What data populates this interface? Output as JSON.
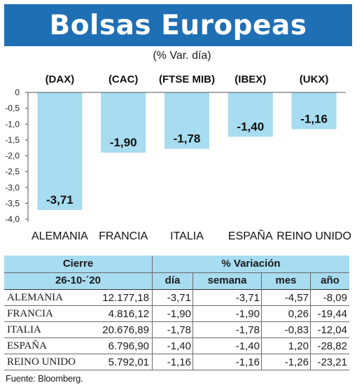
{
  "header": {
    "title": "Bolsas Europeas",
    "subtitle": "(% Var. día)"
  },
  "chart_data": {
    "type": "bar",
    "categories": [
      "ALEMANIA",
      "FRANCIA",
      "ITALIA",
      "ESPAÑA",
      "REINO UNIDO"
    ],
    "index_labels": [
      "(DAX)",
      "(CAC)",
      "(FTSE MIB)",
      "(IBEX)",
      "(UKX)"
    ],
    "values": [
      -3.71,
      -1.9,
      -1.78,
      -1.4,
      -1.16
    ],
    "value_labels": [
      "-3,71",
      "-1,90",
      "-1,78",
      "-1,40",
      "-1,16"
    ],
    "y_ticks": [
      0,
      -0.5,
      -1.0,
      -1.5,
      -2.0,
      -2.5,
      -3.0,
      -3.5,
      -4.0
    ],
    "y_tick_labels": [
      "0",
      "-0,5",
      "-1,0",
      "-1,5",
      "-2,0",
      "-2,5",
      "-3,0",
      "-3,5",
      "-4,0"
    ],
    "ylim": [
      -4.0,
      0
    ],
    "bar_color": "#a8dcf0",
    "grid": false
  },
  "table": {
    "header_close": "Cierre",
    "header_date": "26-10-´20",
    "header_variation": "% Variación",
    "columns": [
      "día",
      "semana",
      "mes",
      "año"
    ],
    "rows": [
      {
        "country": "ALEMANIA",
        "close": "12.177,18",
        "day": "-3,71",
        "week": "-3,71",
        "month": "-4,57",
        "year": "-8,09"
      },
      {
        "country": "FRANCIA",
        "close": "4.816,12",
        "day": "-1,90",
        "week": "-1,90",
        "month": "0,26",
        "year": "-19,44"
      },
      {
        "country": "ITALIA",
        "close": "20.676,89",
        "day": "-1,78",
        "week": "-1,78",
        "month": "-0,83",
        "year": "-12,04"
      },
      {
        "country": "ESPAÑA",
        "close": "6.796,90",
        "day": "-1,40",
        "week": "-1,40",
        "month": "1,20",
        "year": "-28,82"
      },
      {
        "country": "REINO UNIDO",
        "close": "5.792,01",
        "day": "-1,16",
        "week": "-1,16",
        "month": "-1,26",
        "year": "-23,21"
      }
    ]
  },
  "footer": {
    "source": "Fuente: Bloomberg."
  },
  "colors": {
    "title_bg": "#1f6fb5",
    "accent_light": "#a8dcf0"
  }
}
